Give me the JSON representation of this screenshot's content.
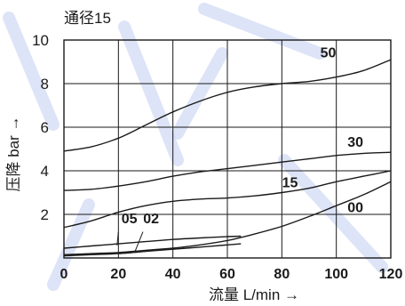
{
  "chart_data": {
    "type": "line",
    "title": "通径15",
    "xlabel": "流量 L/min →",
    "ylabel": "压降 bar →",
    "xlim": [
      0,
      120
    ],
    "ylim": [
      0,
      10
    ],
    "x_ticks": [
      "0",
      "20",
      "40",
      "60",
      "80",
      "100",
      "120"
    ],
    "y_ticks": [
      "2",
      "4",
      "6",
      "8",
      "10"
    ],
    "grid": true,
    "series": [
      {
        "name": "50",
        "x": [
          0,
          10,
          20,
          30,
          40,
          50,
          60,
          70,
          80,
          90,
          100,
          110,
          120
        ],
        "y": [
          4.9,
          5.1,
          5.5,
          6.1,
          6.7,
          7.2,
          7.6,
          7.85,
          8.0,
          8.1,
          8.3,
          8.6,
          9.1
        ]
      },
      {
        "name": "30",
        "x": [
          0,
          10,
          20,
          30,
          40,
          50,
          60,
          70,
          80,
          90,
          100,
          110,
          120
        ],
        "y": [
          3.1,
          3.15,
          3.3,
          3.5,
          3.75,
          3.95,
          4.1,
          4.25,
          4.4,
          4.55,
          4.7,
          4.8,
          4.85
        ]
      },
      {
        "name": "15",
        "x": [
          0,
          10,
          20,
          30,
          40,
          50,
          60,
          70,
          80,
          90,
          100,
          110,
          120
        ],
        "y": [
          1.4,
          1.7,
          2.1,
          2.4,
          2.6,
          2.7,
          2.75,
          2.85,
          3.0,
          3.2,
          3.5,
          3.75,
          4.0
        ]
      },
      {
        "name": "00",
        "x": [
          0,
          10,
          20,
          30,
          40,
          50,
          60,
          70,
          80,
          90,
          100,
          110,
          120
        ],
        "y": [
          0.15,
          0.2,
          0.25,
          0.35,
          0.45,
          0.6,
          0.8,
          1.1,
          1.45,
          1.9,
          2.4,
          2.9,
          3.5
        ]
      },
      {
        "name": "05",
        "x": [
          0,
          10,
          20,
          30,
          40,
          50,
          60,
          65
        ],
        "y": [
          0.45,
          0.55,
          0.65,
          0.75,
          0.85,
          0.92,
          0.98,
          1.0
        ]
      },
      {
        "name": "02",
        "x": [
          0,
          10,
          20,
          30,
          40,
          50,
          60,
          65
        ],
        "y": [
          0.1,
          0.15,
          0.2,
          0.3,
          0.4,
          0.5,
          0.6,
          0.65
        ]
      }
    ],
    "label_positions": {
      "50": [
        97,
        9.2
      ],
      "30": [
        107,
        5.1
      ],
      "15": [
        83,
        3.25
      ],
      "00": [
        107,
        2.1
      ],
      "05": [
        24,
        1.6
      ],
      "02": [
        32,
        1.6
      ]
    }
  }
}
